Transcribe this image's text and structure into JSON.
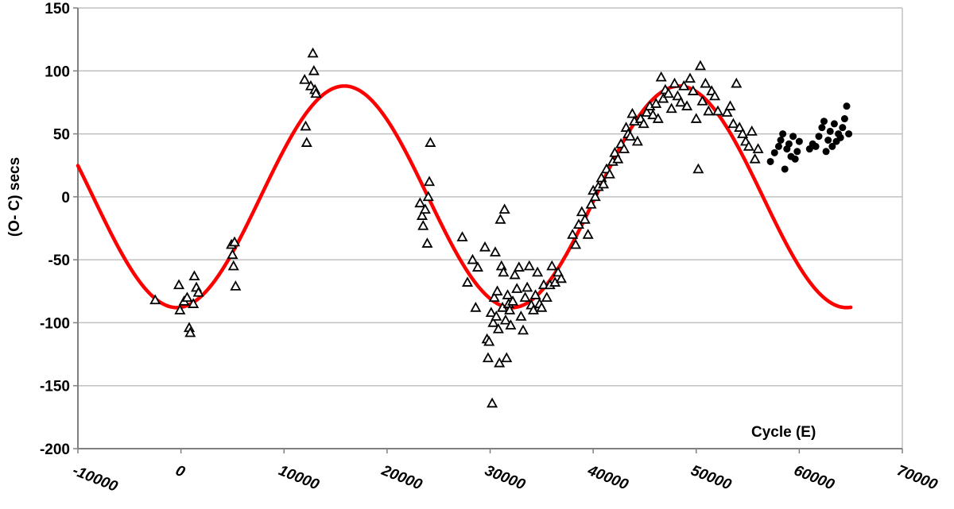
{
  "chart_data": {
    "type": "scatter",
    "title": "",
    "xlabel": "Cycle (E)",
    "ylabel": "(O- C) secs",
    "xlim": [
      -10000,
      70000
    ],
    "ylim": [
      -200,
      150
    ],
    "x_ticks": [
      "-10000",
      "0",
      "10000",
      "20000",
      "30000",
      "40000",
      "50000",
      "60000",
      "70000"
    ],
    "y_ticks": [
      "-200",
      "-150",
      "-100",
      "-50",
      "0",
      "50",
      "100",
      "150"
    ],
    "grid": "horizontal",
    "legend": "none",
    "colors": {
      "fit": "#ff0000",
      "points": "#000000",
      "grid": "#c0c0c0",
      "axis": "#808080"
    },
    "series": [
      {
        "marker": "open-triangle",
        "points": [
          [
            -2500,
            -82
          ],
          [
            -200,
            -70
          ],
          [
            -100,
            -90
          ],
          [
            300,
            -83
          ],
          [
            600,
            -80
          ],
          [
            800,
            -104
          ],
          [
            900,
            -108
          ],
          [
            1200,
            -85
          ],
          [
            1300,
            -63
          ],
          [
            1500,
            -72
          ],
          [
            1700,
            -76
          ],
          [
            4900,
            -38
          ],
          [
            5000,
            -46
          ],
          [
            5100,
            -55
          ],
          [
            5200,
            -36
          ],
          [
            5300,
            -71
          ],
          [
            12000,
            93
          ],
          [
            12100,
            56
          ],
          [
            12200,
            43
          ],
          [
            12600,
            88
          ],
          [
            12800,
            114
          ],
          [
            12900,
            100
          ],
          [
            13000,
            85
          ],
          [
            13100,
            82
          ],
          [
            23200,
            -5
          ],
          [
            23400,
            -15
          ],
          [
            23500,
            -23
          ],
          [
            23700,
            -10
          ],
          [
            23900,
            -37
          ],
          [
            24000,
            0
          ],
          [
            24100,
            12
          ],
          [
            24200,
            43
          ],
          [
            27300,
            -32
          ],
          [
            27800,
            -68
          ],
          [
            28300,
            -50
          ],
          [
            28600,
            -88
          ],
          [
            28800,
            -56
          ],
          [
            29500,
            -40
          ],
          [
            29700,
            -113
          ],
          [
            29800,
            -128
          ],
          [
            29900,
            -115
          ],
          [
            30100,
            -92
          ],
          [
            30200,
            -164
          ],
          [
            30300,
            -100
          ],
          [
            30400,
            -80
          ],
          [
            30500,
            -44
          ],
          [
            30600,
            -95
          ],
          [
            30700,
            -75
          ],
          [
            30800,
            -105
          ],
          [
            30900,
            -132
          ],
          [
            31000,
            -18
          ],
          [
            31100,
            -55
          ],
          [
            31200,
            -88
          ],
          [
            31300,
            -60
          ],
          [
            31400,
            -10
          ],
          [
            31500,
            -98
          ],
          [
            31600,
            -128
          ],
          [
            31700,
            -78
          ],
          [
            31800,
            -85
          ],
          [
            31900,
            -90
          ],
          [
            32000,
            -102
          ],
          [
            32200,
            -83
          ],
          [
            32400,
            -62
          ],
          [
            32600,
            -73
          ],
          [
            32800,
            -56
          ],
          [
            33000,
            -95
          ],
          [
            33200,
            -106
          ],
          [
            33400,
            -80
          ],
          [
            33600,
            -72
          ],
          [
            33800,
            -55
          ],
          [
            34000,
            -86
          ],
          [
            34200,
            -90
          ],
          [
            34400,
            -78
          ],
          [
            34600,
            -60
          ],
          [
            34800,
            -85
          ],
          [
            35000,
            -88
          ],
          [
            35200,
            -70
          ],
          [
            35500,
            -80
          ],
          [
            35800,
            -70
          ],
          [
            36000,
            -55
          ],
          [
            36300,
            -68
          ],
          [
            36600,
            -60
          ],
          [
            36900,
            -65
          ],
          [
            38000,
            -30
          ],
          [
            38300,
            -38
          ],
          [
            38600,
            -22
          ],
          [
            38900,
            -12
          ],
          [
            39200,
            -18
          ],
          [
            39500,
            -30
          ],
          [
            39800,
            -6
          ],
          [
            40000,
            5
          ],
          [
            40200,
            0
          ],
          [
            40500,
            8
          ],
          [
            40800,
            15
          ],
          [
            41000,
            10
          ],
          [
            41300,
            22
          ],
          [
            41600,
            18
          ],
          [
            41900,
            28
          ],
          [
            42100,
            35
          ],
          [
            42400,
            30
          ],
          [
            42700,
            42
          ],
          [
            43000,
            38
          ],
          [
            43200,
            55
          ],
          [
            43400,
            50
          ],
          [
            43600,
            48
          ],
          [
            43800,
            66
          ],
          [
            44000,
            60
          ],
          [
            44300,
            44
          ],
          [
            44600,
            62
          ],
          [
            44900,
            58
          ],
          [
            45200,
            67
          ],
          [
            45500,
            72
          ],
          [
            45800,
            65
          ],
          [
            46100,
            74
          ],
          [
            46300,
            62
          ],
          [
            46600,
            95
          ],
          [
            46800,
            78
          ],
          [
            47000,
            85
          ],
          [
            47300,
            82
          ],
          [
            47600,
            70
          ],
          [
            47900,
            90
          ],
          [
            48200,
            80
          ],
          [
            48500,
            75
          ],
          [
            48800,
            88
          ],
          [
            49100,
            72
          ],
          [
            49400,
            94
          ],
          [
            49700,
            84
          ],
          [
            50000,
            62
          ],
          [
            50200,
            22
          ],
          [
            50400,
            104
          ],
          [
            50600,
            76
          ],
          [
            50900,
            90
          ],
          [
            51200,
            68
          ],
          [
            51500,
            84
          ],
          [
            51800,
            80
          ],
          [
            52100,
            68
          ],
          [
            53000,
            67
          ],
          [
            53300,
            72
          ],
          [
            53600,
            58
          ],
          [
            53900,
            90
          ],
          [
            54200,
            55
          ],
          [
            54500,
            50
          ],
          [
            54800,
            44
          ],
          [
            55100,
            40
          ],
          [
            55400,
            52
          ],
          [
            55700,
            30
          ],
          [
            56000,
            38
          ]
        ]
      },
      {
        "marker": "filled-circle",
        "points": [
          [
            57200,
            28
          ],
          [
            57600,
            35
          ],
          [
            58000,
            40
          ],
          [
            58200,
            45
          ],
          [
            58400,
            50
          ],
          [
            58600,
            22
          ],
          [
            58800,
            38
          ],
          [
            59000,
            42
          ],
          [
            59200,
            32
          ],
          [
            59400,
            48
          ],
          [
            59600,
            30
          ],
          [
            59800,
            36
          ],
          [
            60000,
            44
          ],
          [
            61000,
            38
          ],
          [
            61300,
            42
          ],
          [
            61600,
            40
          ],
          [
            61900,
            48
          ],
          [
            62200,
            55
          ],
          [
            62400,
            60
          ],
          [
            62600,
            36
          ],
          [
            62800,
            45
          ],
          [
            63000,
            52
          ],
          [
            63200,
            40
          ],
          [
            63400,
            58
          ],
          [
            63600,
            44
          ],
          [
            63800,
            50
          ],
          [
            64000,
            47
          ],
          [
            64200,
            55
          ],
          [
            64400,
            62
          ],
          [
            64600,
            72
          ],
          [
            64800,
            50
          ]
        ]
      }
    ],
    "fit_curve": {
      "color": "#ff0000",
      "amplitude": 88,
      "period": 32500,
      "phase_min_at": -400,
      "x_range": [
        -10000,
        65000
      ]
    }
  }
}
